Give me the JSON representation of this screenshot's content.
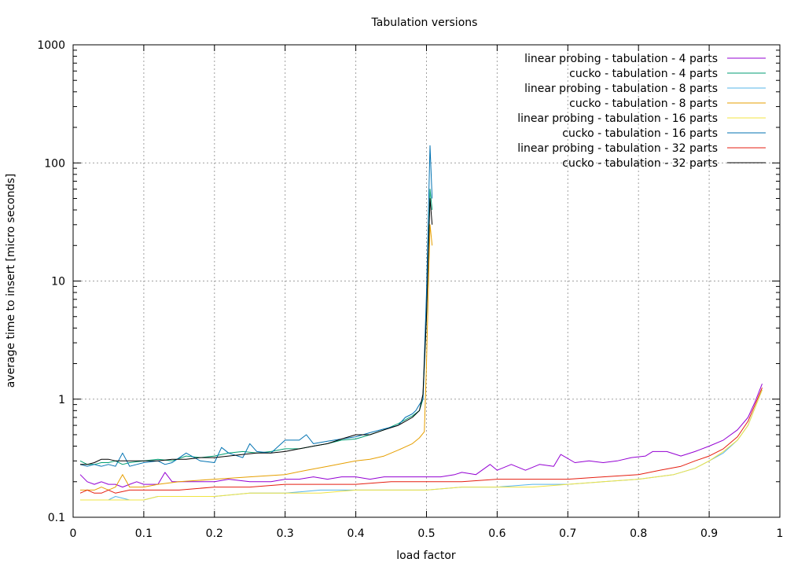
{
  "chart_data": {
    "type": "line",
    "title": "Tabulation versions",
    "xlabel": "load factor",
    "ylabel": "average time to insert [micro seconds]",
    "xlim": [
      0,
      1
    ],
    "ylim": [
      0.1,
      1000
    ],
    "yscale": "log",
    "grid": true,
    "legend_position": "top-right",
    "x_ticks": [
      "0",
      "0.1",
      "0.2",
      "0.3",
      "0.4",
      "0.5",
      "0.6",
      "0.7",
      "0.8",
      "0.9",
      "1"
    ],
    "y_ticks": [
      "0.1",
      "1",
      "10",
      "100",
      "1000"
    ],
    "series": [
      {
        "name": "linear probing - tabulation - 4 parts",
        "color": "#9400d3",
        "points": [
          [
            0.01,
            0.23
          ],
          [
            0.02,
            0.2
          ],
          [
            0.03,
            0.19
          ],
          [
            0.04,
            0.2
          ],
          [
            0.05,
            0.19
          ],
          [
            0.06,
            0.19
          ],
          [
            0.07,
            0.18
          ],
          [
            0.08,
            0.19
          ],
          [
            0.09,
            0.2
          ],
          [
            0.1,
            0.19
          ],
          [
            0.11,
            0.19
          ],
          [
            0.12,
            0.19
          ],
          [
            0.13,
            0.24
          ],
          [
            0.14,
            0.2
          ],
          [
            0.15,
            0.2
          ],
          [
            0.17,
            0.2
          ],
          [
            0.2,
            0.2
          ],
          [
            0.22,
            0.21
          ],
          [
            0.25,
            0.2
          ],
          [
            0.28,
            0.2
          ],
          [
            0.3,
            0.21
          ],
          [
            0.32,
            0.21
          ],
          [
            0.34,
            0.22
          ],
          [
            0.36,
            0.21
          ],
          [
            0.38,
            0.22
          ],
          [
            0.4,
            0.22
          ],
          [
            0.42,
            0.21
          ],
          [
            0.44,
            0.22
          ],
          [
            0.46,
            0.22
          ],
          [
            0.48,
            0.22
          ],
          [
            0.5,
            0.22
          ],
          [
            0.52,
            0.22
          ],
          [
            0.54,
            0.23
          ],
          [
            0.55,
            0.24
          ],
          [
            0.57,
            0.23
          ],
          [
            0.59,
            0.28
          ],
          [
            0.6,
            0.25
          ],
          [
            0.62,
            0.28
          ],
          [
            0.64,
            0.25
          ],
          [
            0.66,
            0.28
          ],
          [
            0.68,
            0.27
          ],
          [
            0.69,
            0.34
          ],
          [
            0.71,
            0.29
          ],
          [
            0.73,
            0.3
          ],
          [
            0.75,
            0.29
          ],
          [
            0.77,
            0.3
          ],
          [
            0.79,
            0.32
          ],
          [
            0.81,
            0.33
          ],
          [
            0.82,
            0.36
          ],
          [
            0.84,
            0.36
          ],
          [
            0.86,
            0.33
          ],
          [
            0.88,
            0.36
          ],
          [
            0.9,
            0.4
          ],
          [
            0.92,
            0.45
          ],
          [
            0.94,
            0.55
          ],
          [
            0.955,
            0.7
          ],
          [
            0.965,
            0.95
          ],
          [
            0.975,
            1.35
          ]
        ]
      },
      {
        "name": "cucko - tabulation - 4 parts",
        "color": "#009e73",
        "points": [
          [
            0.01,
            0.3
          ],
          [
            0.02,
            0.28
          ],
          [
            0.03,
            0.28
          ],
          [
            0.04,
            0.29
          ],
          [
            0.05,
            0.29
          ],
          [
            0.06,
            0.3
          ],
          [
            0.07,
            0.28
          ],
          [
            0.08,
            0.29
          ],
          [
            0.1,
            0.3
          ],
          [
            0.12,
            0.31
          ],
          [
            0.14,
            0.3
          ],
          [
            0.16,
            0.33
          ],
          [
            0.18,
            0.32
          ],
          [
            0.2,
            0.33
          ],
          [
            0.22,
            0.35
          ],
          [
            0.24,
            0.36
          ],
          [
            0.26,
            0.35
          ],
          [
            0.28,
            0.36
          ],
          [
            0.3,
            0.38
          ],
          [
            0.32,
            0.38
          ],
          [
            0.34,
            0.4
          ],
          [
            0.36,
            0.42
          ],
          [
            0.38,
            0.45
          ],
          [
            0.4,
            0.46
          ],
          [
            0.42,
            0.5
          ],
          [
            0.44,
            0.55
          ],
          [
            0.46,
            0.62
          ],
          [
            0.48,
            0.72
          ],
          [
            0.49,
            0.8
          ],
          [
            0.495,
            1.0
          ],
          [
            0.5,
            5.0
          ],
          [
            0.505,
            60.0
          ],
          [
            0.508,
            40.0
          ]
        ]
      },
      {
        "name": "linear probing - tabulation - 8 parts",
        "color": "#56b4e9",
        "points": [
          [
            0.01,
            0.14
          ],
          [
            0.02,
            0.14
          ],
          [
            0.03,
            0.14
          ],
          [
            0.04,
            0.14
          ],
          [
            0.05,
            0.14
          ],
          [
            0.06,
            0.15
          ],
          [
            0.08,
            0.14
          ],
          [
            0.1,
            0.14
          ],
          [
            0.12,
            0.15
          ],
          [
            0.15,
            0.15
          ],
          [
            0.2,
            0.15
          ],
          [
            0.25,
            0.16
          ],
          [
            0.3,
            0.16
          ],
          [
            0.35,
            0.17
          ],
          [
            0.4,
            0.17
          ],
          [
            0.45,
            0.17
          ],
          [
            0.5,
            0.17
          ],
          [
            0.55,
            0.18
          ],
          [
            0.6,
            0.18
          ],
          [
            0.65,
            0.19
          ],
          [
            0.7,
            0.19
          ],
          [
            0.75,
            0.2
          ],
          [
            0.8,
            0.21
          ],
          [
            0.85,
            0.23
          ],
          [
            0.88,
            0.26
          ],
          [
            0.9,
            0.3
          ],
          [
            0.92,
            0.35
          ],
          [
            0.94,
            0.45
          ],
          [
            0.955,
            0.6
          ],
          [
            0.965,
            0.85
          ],
          [
            0.975,
            1.2
          ]
        ]
      },
      {
        "name": "cucko - tabulation - 8 parts",
        "color": "#e69f00",
        "points": [
          [
            0.01,
            0.17
          ],
          [
            0.02,
            0.17
          ],
          [
            0.03,
            0.17
          ],
          [
            0.04,
            0.18
          ],
          [
            0.05,
            0.17
          ],
          [
            0.06,
            0.18
          ],
          [
            0.07,
            0.23
          ],
          [
            0.08,
            0.18
          ],
          [
            0.1,
            0.18
          ],
          [
            0.12,
            0.19
          ],
          [
            0.15,
            0.2
          ],
          [
            0.2,
            0.21
          ],
          [
            0.25,
            0.22
          ],
          [
            0.3,
            0.23
          ],
          [
            0.33,
            0.25
          ],
          [
            0.36,
            0.27
          ],
          [
            0.4,
            0.3
          ],
          [
            0.42,
            0.31
          ],
          [
            0.44,
            0.33
          ],
          [
            0.46,
            0.37
          ],
          [
            0.48,
            0.42
          ],
          [
            0.49,
            0.47
          ],
          [
            0.497,
            0.53
          ],
          [
            0.5,
            2.0
          ],
          [
            0.505,
            30.0
          ],
          [
            0.508,
            20.0
          ]
        ]
      },
      {
        "name": "linear probing - tabulation - 16 parts",
        "color": "#f0e442",
        "points": [
          [
            0.01,
            0.14
          ],
          [
            0.02,
            0.14
          ],
          [
            0.03,
            0.14
          ],
          [
            0.04,
            0.14
          ],
          [
            0.05,
            0.14
          ],
          [
            0.07,
            0.14
          ],
          [
            0.1,
            0.14
          ],
          [
            0.12,
            0.15
          ],
          [
            0.15,
            0.15
          ],
          [
            0.2,
            0.15
          ],
          [
            0.25,
            0.16
          ],
          [
            0.3,
            0.16
          ],
          [
            0.35,
            0.16
          ],
          [
            0.4,
            0.17
          ],
          [
            0.45,
            0.17
          ],
          [
            0.5,
            0.17
          ],
          [
            0.55,
            0.18
          ],
          [
            0.6,
            0.18
          ],
          [
            0.65,
            0.18
          ],
          [
            0.7,
            0.19
          ],
          [
            0.75,
            0.2
          ],
          [
            0.8,
            0.21
          ],
          [
            0.85,
            0.23
          ],
          [
            0.88,
            0.26
          ],
          [
            0.9,
            0.3
          ],
          [
            0.92,
            0.36
          ],
          [
            0.94,
            0.45
          ],
          [
            0.955,
            0.6
          ],
          [
            0.965,
            0.85
          ],
          [
            0.975,
            1.2
          ]
        ]
      },
      {
        "name": "cucko - tabulation - 16 parts",
        "color": "#0072b2",
        "points": [
          [
            0.01,
            0.28
          ],
          [
            0.02,
            0.27
          ],
          [
            0.03,
            0.28
          ],
          [
            0.04,
            0.27
          ],
          [
            0.05,
            0.28
          ],
          [
            0.06,
            0.27
          ],
          [
            0.07,
            0.35
          ],
          [
            0.08,
            0.27
          ],
          [
            0.09,
            0.28
          ],
          [
            0.1,
            0.29
          ],
          [
            0.12,
            0.3
          ],
          [
            0.13,
            0.28
          ],
          [
            0.14,
            0.29
          ],
          [
            0.16,
            0.35
          ],
          [
            0.18,
            0.3
          ],
          [
            0.2,
            0.29
          ],
          [
            0.21,
            0.39
          ],
          [
            0.22,
            0.35
          ],
          [
            0.24,
            0.32
          ],
          [
            0.25,
            0.42
          ],
          [
            0.26,
            0.36
          ],
          [
            0.28,
            0.35
          ],
          [
            0.3,
            0.45
          ],
          [
            0.32,
            0.45
          ],
          [
            0.33,
            0.5
          ],
          [
            0.34,
            0.42
          ],
          [
            0.36,
            0.44
          ],
          [
            0.38,
            0.46
          ],
          [
            0.4,
            0.48
          ],
          [
            0.42,
            0.52
          ],
          [
            0.44,
            0.56
          ],
          [
            0.46,
            0.6
          ],
          [
            0.47,
            0.7
          ],
          [
            0.48,
            0.75
          ],
          [
            0.485,
            0.8
          ],
          [
            0.49,
            0.9
          ],
          [
            0.495,
            1.0
          ],
          [
            0.5,
            8.0
          ],
          [
            0.505,
            140.0
          ],
          [
            0.508,
            50.0
          ]
        ]
      },
      {
        "name": "linear probing - tabulation - 32 parts",
        "color": "#e51e10",
        "points": [
          [
            0.01,
            0.16
          ],
          [
            0.02,
            0.17
          ],
          [
            0.03,
            0.16
          ],
          [
            0.04,
            0.16
          ],
          [
            0.05,
            0.17
          ],
          [
            0.06,
            0.16
          ],
          [
            0.08,
            0.17
          ],
          [
            0.1,
            0.17
          ],
          [
            0.12,
            0.17
          ],
          [
            0.15,
            0.17
          ],
          [
            0.2,
            0.18
          ],
          [
            0.25,
            0.18
          ],
          [
            0.3,
            0.19
          ],
          [
            0.35,
            0.19
          ],
          [
            0.4,
            0.19
          ],
          [
            0.45,
            0.2
          ],
          [
            0.5,
            0.2
          ],
          [
            0.55,
            0.2
          ],
          [
            0.6,
            0.21
          ],
          [
            0.65,
            0.21
          ],
          [
            0.7,
            0.21
          ],
          [
            0.75,
            0.22
          ],
          [
            0.8,
            0.23
          ],
          [
            0.83,
            0.25
          ],
          [
            0.86,
            0.27
          ],
          [
            0.88,
            0.3
          ],
          [
            0.9,
            0.33
          ],
          [
            0.92,
            0.38
          ],
          [
            0.94,
            0.48
          ],
          [
            0.955,
            0.65
          ],
          [
            0.965,
            0.9
          ],
          [
            0.975,
            1.25
          ]
        ]
      },
      {
        "name": "cucko - tabulation - 32 parts",
        "color": "#000000",
        "points": [
          [
            0.01,
            0.28
          ],
          [
            0.02,
            0.28
          ],
          [
            0.03,
            0.29
          ],
          [
            0.04,
            0.31
          ],
          [
            0.05,
            0.31
          ],
          [
            0.06,
            0.3
          ],
          [
            0.08,
            0.3
          ],
          [
            0.1,
            0.3
          ],
          [
            0.12,
            0.3
          ],
          [
            0.14,
            0.31
          ],
          [
            0.16,
            0.31
          ],
          [
            0.18,
            0.32
          ],
          [
            0.2,
            0.32
          ],
          [
            0.22,
            0.33
          ],
          [
            0.24,
            0.34
          ],
          [
            0.26,
            0.35
          ],
          [
            0.28,
            0.35
          ],
          [
            0.3,
            0.36
          ],
          [
            0.32,
            0.38
          ],
          [
            0.34,
            0.4
          ],
          [
            0.36,
            0.42
          ],
          [
            0.38,
            0.46
          ],
          [
            0.4,
            0.5
          ],
          [
            0.42,
            0.5
          ],
          [
            0.44,
            0.55
          ],
          [
            0.46,
            0.6
          ],
          [
            0.48,
            0.7
          ],
          [
            0.49,
            0.8
          ],
          [
            0.495,
            1.1
          ],
          [
            0.5,
            5.0
          ],
          [
            0.505,
            50.0
          ],
          [
            0.508,
            30.0
          ]
        ]
      }
    ]
  }
}
